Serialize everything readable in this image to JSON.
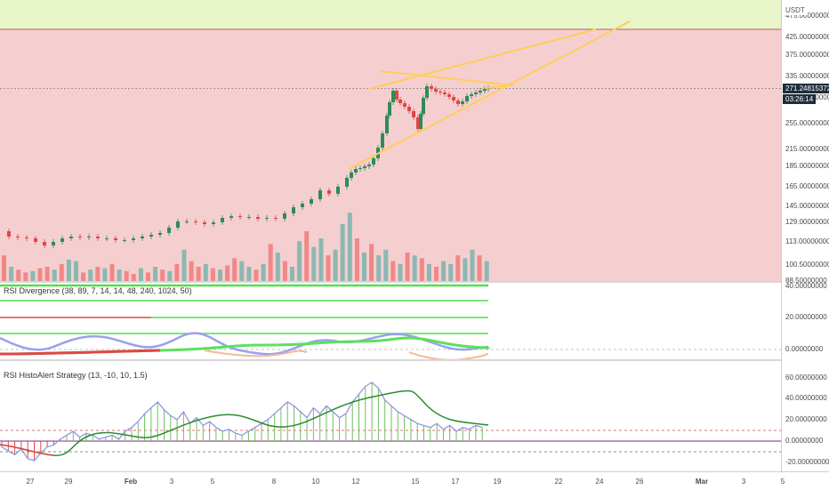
{
  "chart_data": [
    {
      "type": "candlestick",
      "title": "",
      "price_axis": {
        "currency": "USDT",
        "ticks": [
          "475.00000000",
          "425.00000000",
          "375.00000000",
          "335.00000000",
          "295.00000000",
          "255.00000000",
          "215.00000000",
          "185.00000000",
          "165.00000000",
          "145.00000000",
          "129.00000000",
          "113.00000000",
          "100.50000000",
          "88.50000000",
          "79.50000000"
        ],
        "scale": "log",
        "ylim": [
          79.5,
          475
        ]
      },
      "last_price": "271.24815372",
      "countdown": "03:26:14",
      "time_axis": [
        "27",
        "29",
        "Feb",
        "3",
        "5",
        "8",
        "10",
        "12",
        "15",
        "17",
        "19",
        "22",
        "24",
        "26",
        "Mar",
        "3",
        "5"
      ],
      "zones": [
        {
          "label": "green-zone",
          "from": 380,
          "to": 475,
          "color": "#e8f5c9"
        },
        {
          "label": "red-zone",
          "from": 79.5,
          "to": 380,
          "color": "#f5cfd0"
        }
      ],
      "colors": {
        "up": "#2e8b57",
        "down": "#e04646",
        "trendline": "#ffce5a",
        "vol_up": "#7fb5ad",
        "vol_down": "#f08080"
      }
    },
    {
      "type": "line",
      "title": "RSI Divergence (38, 89, 7, 14, 14, 48, 240, 1024, 50)",
      "yticks": [
        "40.00000000",
        "20.00000000",
        "0.00000000"
      ],
      "ylim": [
        0,
        40
      ]
    },
    {
      "type": "bar",
      "title": "RSI HistoAlert Strategy (13, -10, 10, 1.5)",
      "yticks": [
        "60.00000000",
        "40.00000000",
        "20.00000000",
        "0.00000000",
        "-20.00000000"
      ],
      "ylim": [
        -25,
        70
      ],
      "levels": [
        10,
        0,
        -10
      ]
    }
  ]
}
